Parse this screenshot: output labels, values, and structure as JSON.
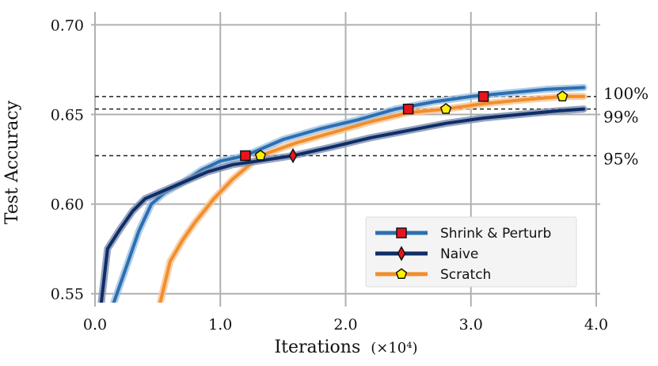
{
  "chart_data": {
    "type": "line",
    "xlabel": "Iterations",
    "xlabel_unit": "(×10⁴)",
    "ylabel": "Test Accuracy",
    "xlim": [
      0.0,
      4.0
    ],
    "ylim": [
      0.545,
      0.705
    ],
    "x_ticks": [
      0.0,
      1.0,
      2.0,
      3.0,
      4.0
    ],
    "x_tick_labels": [
      "0.0",
      "1.0",
      "2.0",
      "3.0",
      "4.0"
    ],
    "y_ticks": [
      0.55,
      0.6,
      0.65,
      0.7
    ],
    "y_tick_labels": [
      "0.55",
      "0.60",
      "0.65",
      "0.70"
    ],
    "grid": true,
    "legend_position": "bottom-right",
    "reference_lines": [
      {
        "label": "100%",
        "y": 0.66
      },
      {
        "label": "99%",
        "y": 0.653
      },
      {
        "label": "95%",
        "y": 0.627
      }
    ],
    "series": [
      {
        "name": "Shrink & Perturb",
        "color": "#2b6fb2",
        "band_color": "#9ec0e2",
        "marker": "square",
        "marker_color": "#e8141d",
        "x": [
          0.15,
          0.25,
          0.35,
          0.45,
          0.55,
          0.7,
          0.85,
          1.0,
          1.2,
          1.5,
          1.8,
          2.1,
          2.4,
          2.7,
          3.0,
          3.3,
          3.6,
          3.9
        ],
        "y": [
          0.545,
          0.565,
          0.585,
          0.6,
          0.606,
          0.612,
          0.619,
          0.624,
          0.627,
          0.636,
          0.642,
          0.647,
          0.653,
          0.657,
          0.66,
          0.662,
          0.664,
          0.665
        ],
        "markers_x": [
          1.2,
          2.5,
          3.1
        ],
        "markers_y": [
          0.627,
          0.653,
          0.66
        ]
      },
      {
        "name": "Naive",
        "color": "#0f2d66",
        "band_color": "#7d8eb0",
        "marker": "diamond",
        "marker_color": "#e8141d",
        "x": [
          0.05,
          0.1,
          0.2,
          0.3,
          0.4,
          0.5,
          0.7,
          0.9,
          1.1,
          1.3,
          1.58,
          1.9,
          2.2,
          2.5,
          2.8,
          3.1,
          3.4,
          3.7,
          3.9
        ],
        "y": [
          0.545,
          0.575,
          0.586,
          0.596,
          0.603,
          0.606,
          0.612,
          0.618,
          0.622,
          0.624,
          0.627,
          0.632,
          0.637,
          0.641,
          0.645,
          0.648,
          0.65,
          0.652,
          0.653
        ],
        "markers_x": [
          1.58
        ],
        "markers_y": [
          0.627
        ]
      },
      {
        "name": "Scratch",
        "color": "#f28e2b",
        "band_color": "#f8c696",
        "marker": "pentagon",
        "marker_color": "#fff200",
        "x": [
          0.52,
          0.6,
          0.7,
          0.8,
          0.95,
          1.1,
          1.32,
          1.6,
          1.9,
          2.2,
          2.5,
          2.8,
          3.1,
          3.4,
          3.73,
          3.9
        ],
        "y": [
          0.545,
          0.568,
          0.58,
          0.59,
          0.603,
          0.614,
          0.627,
          0.634,
          0.64,
          0.646,
          0.651,
          0.653,
          0.656,
          0.658,
          0.66,
          0.66
        ],
        "markers_x": [
          1.32,
          2.8,
          3.73
        ],
        "markers_y": [
          0.627,
          0.653,
          0.66
        ]
      }
    ]
  },
  "legend": {
    "items": [
      {
        "label": "Shrink & Perturb"
      },
      {
        "label": "Naive"
      },
      {
        "label": "Scratch"
      }
    ]
  }
}
